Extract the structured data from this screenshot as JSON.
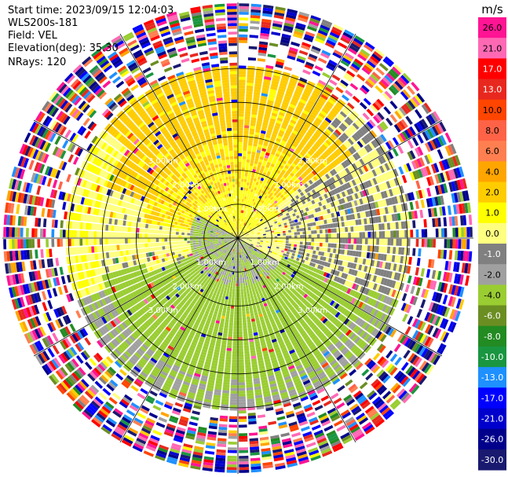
{
  "header": {
    "start_time_label": "Start time:",
    "start_time_value": "2023/09/15 12:04:03",
    "station": "WLS200s-181",
    "field_label": "Field:",
    "field_value": "VEL",
    "elevation_label": "Elevation(deg):",
    "elevation_value": "35.30",
    "nrays_label": "NRays:",
    "nrays_value": "120"
  },
  "chart_data": {
    "type": "heatmap",
    "projection": "polar-ppi",
    "field": "VEL",
    "unit": "m/s",
    "nrays": 120,
    "ring_labels": [
      "1.00km",
      "2.00km",
      "3.00km"
    ],
    "rings_km": [
      1,
      2,
      3,
      4,
      5
    ],
    "spokes_deg": [
      0,
      30,
      60,
      90,
      120,
      150,
      180,
      210,
      240,
      270,
      300,
      330
    ],
    "colorbar": {
      "unit_label": "m/s",
      "tick_labels": [
        "26.0",
        "21.0",
        "17.0",
        "13.0",
        "10.0",
        "8.0",
        "6.0",
        "4.0",
        "2.0",
        "1.0",
        "0.0",
        "-1.0",
        "-2.0",
        "-4.0",
        "-6.0",
        "-8.0",
        "-10.0",
        "-13.0",
        "-17.0",
        "-21.0",
        "-26.0",
        "-30.0"
      ],
      "colors": [
        "#ff1493",
        "#ff69b4",
        "#ff0000",
        "#e8281e",
        "#ff4500",
        "#ff6347",
        "#ff7f50",
        "#ffa500",
        "#ffcc00",
        "#ffff00",
        "#ffff80",
        "#808080",
        "#a0a0a0",
        "#9acd32",
        "#6b8e23",
        "#228b22",
        "#1a9641",
        "#1e90ff",
        "#0000ff",
        "#0000cd",
        "#00008b",
        "#191970"
      ]
    },
    "regions": [
      {
        "range_km": [
          0,
          1.0
        ],
        "values": [
          {
            "az": [
              300,
              60
            ],
            "value": 1.5
          },
          {
            "az": [
              60,
              120
            ],
            "value": 0.5
          },
          {
            "az": [
              120,
              300
            ],
            "value": -2.0
          }
        ]
      },
      {
        "range_km": [
          1.0,
          2.0
        ],
        "values": [
          {
            "az": [
              280,
              50
            ],
            "value": 2.0
          },
          {
            "az": [
              50,
              110
            ],
            "value": 0.0
          },
          {
            "az": [
              110,
              250
            ],
            "value": -3.0
          },
          {
            "az": [
              250,
              280
            ],
            "value": 0.5
          }
        ]
      },
      {
        "range_km": [
          2.0,
          3.0
        ],
        "values": [
          {
            "az": [
              290,
              55
            ],
            "value": 2.5
          },
          {
            "az": [
              55,
              115
            ],
            "value": 0.0
          },
          {
            "az": [
              115,
              255
            ],
            "value": -3.0
          },
          {
            "az": [
              255,
              290
            ],
            "value": 0.5
          }
        ]
      },
      {
        "range_km": [
          3.0,
          3.6
        ],
        "values": [
          {
            "az": [
              310,
              40
            ],
            "value": 2.5
          },
          {
            "az": [
              40,
              110
            ],
            "value": 0.0
          },
          {
            "az": [
              110,
              250
            ],
            "value": -2.0
          },
          {
            "az": [
              250,
              310
            ],
            "value": 1.0
          }
        ]
      }
    ],
    "noise_beyond_km": 3.6,
    "max_range_km": 5.0
  }
}
